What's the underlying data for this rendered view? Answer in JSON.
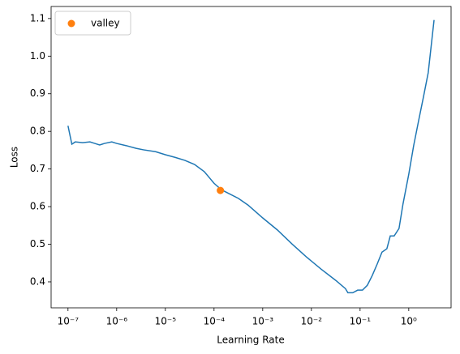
{
  "chart_data": {
    "type": "line",
    "xlabel": "Learning Rate",
    "ylabel": "Loss",
    "xscale": "log",
    "legend": "upper left",
    "x": [
      1e-07,
      1.2e-07,
      1.41e-07,
      2e-07,
      2.82e-07,
      3.55e-07,
      4.47e-07,
      5.62e-07,
      7.94e-07,
      1e-06,
      1.58e-06,
      2.51e-06,
      3.55e-06,
      6.31e-06,
      1e-05,
      1.58e-05,
      2.51e-05,
      3.98e-05,
      6.31e-05,
      0.0001,
      0.000141,
      0.0002,
      0.000316,
      0.000501,
      0.001,
      0.002,
      0.00398,
      0.00794,
      0.0158,
      0.0316,
      0.0501,
      0.0562,
      0.0708,
      0.0891,
      0.112,
      0.141,
      0.178,
      0.224,
      0.282,
      0.355,
      0.417,
      0.501,
      0.631,
      0.759,
      1,
      1.26,
      1.58,
      2,
      2.51,
      3.31
    ],
    "series": [
      {
        "color": "#1f77b4",
        "values": [
          0.815,
          0.766,
          0.772,
          0.77,
          0.772,
          0.768,
          0.764,
          0.768,
          0.772,
          0.768,
          0.762,
          0.755,
          0.751,
          0.746,
          0.738,
          0.731,
          0.723,
          0.712,
          0.693,
          0.662,
          0.645,
          0.635,
          0.622,
          0.604,
          0.57,
          0.538,
          0.501,
          0.466,
          0.434,
          0.404,
          0.382,
          0.371,
          0.371,
          0.378,
          0.378,
          0.391,
          0.417,
          0.447,
          0.479,
          0.488,
          0.522,
          0.522,
          0.542,
          0.606,
          0.686,
          0.762,
          0.826,
          0.891,
          0.956,
          1.096
        ]
      },
      {
        "name": "valley",
        "type": "scatter",
        "color": "#ff7f0e",
        "x": [
          0.000135
        ],
        "values": [
          0.643
        ]
      }
    ],
    "xlim": [
      4.5e-08,
      7.4
    ],
    "ylim": [
      0.331,
      1.132
    ],
    "xticks": [
      {
        "value": 1e-07,
        "label": "10⁻⁷"
      },
      {
        "value": 1e-06,
        "label": "10⁻⁶"
      },
      {
        "value": 1e-05,
        "label": "10⁻⁵"
      },
      {
        "value": 0.0001,
        "label": "10⁻⁴"
      },
      {
        "value": 0.001,
        "label": "10⁻³"
      },
      {
        "value": 0.01,
        "label": "10⁻²"
      },
      {
        "value": 0.1,
        "label": "10⁻¹"
      },
      {
        "value": 1,
        "label": "10⁰"
      }
    ],
    "yticks": [
      0.4,
      0.5,
      0.6,
      0.7,
      0.8,
      0.9,
      {
        "value": 1,
        "label": "1.0"
      },
      1.1
    ]
  }
}
